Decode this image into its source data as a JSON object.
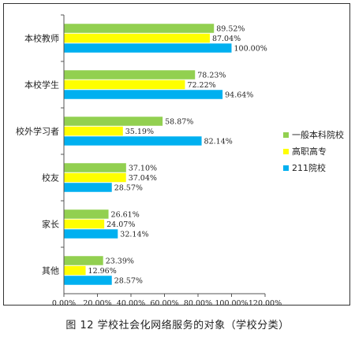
{
  "caption": "图 12  学校社会化网络服务的对象（学校分类）",
  "chart_data": {
    "type": "bar",
    "orientation": "horizontal",
    "categories": [
      "本校教师",
      "本校学生",
      "校外学习者",
      "校友",
      "家长",
      "其他"
    ],
    "series": [
      {
        "name": "一般本科院校",
        "color": "#92d050",
        "values": [
          89.52,
          78.23,
          58.87,
          37.1,
          26.61,
          23.39
        ],
        "labels": [
          "89.52%",
          "78.23%",
          "58.87%",
          "37.10%",
          "26.61%",
          "23.39%"
        ]
      },
      {
        "name": "高职高专",
        "color": "#ffff00",
        "values": [
          87.04,
          72.22,
          35.19,
          37.04,
          24.07,
          12.96
        ],
        "labels": [
          "87.04%",
          "72.22%",
          "35.19%",
          "37.04%",
          "24.07%",
          "12.96%"
        ]
      },
      {
        "name": "211院校",
        "color": "#00b0f0",
        "values": [
          100.0,
          94.64,
          82.14,
          28.57,
          32.14,
          28.57
        ],
        "labels": [
          "100.00%",
          "94.64%",
          "82.14%",
          "28.57%",
          "32.14%",
          "28.57%"
        ]
      }
    ],
    "xlim": [
      0,
      120
    ],
    "xticks": [
      "0.00%",
      "20.00%",
      "40.00%",
      "60.00%",
      "80.00%",
      "100.00%",
      "120.00%"
    ],
    "grid": false,
    "legend_position": "right"
  }
}
